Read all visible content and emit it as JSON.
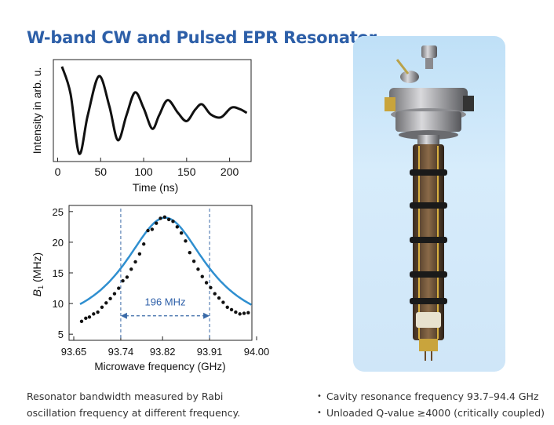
{
  "title": "W-band CW and Pulsed EPR Resonator",
  "caption": "Resonator bandwidth measured by Rabi oscillation frequency at different frequency.",
  "bullets": [
    "Cavity resonance frequency 93.7–94.4 GHz",
    "Unloaded Q-value ≥4000 (critically coupled)"
  ],
  "colors": {
    "title": "#2d5fa8",
    "fit_line": "#2f8fd0",
    "dashed": "#3a6aa8",
    "photo_bg": "#cfe6f8"
  },
  "chart_data": [
    {
      "type": "line",
      "xlabel": "Time (ns)",
      "ylabel": "Intensity in arb. u.",
      "xlim": [
        -5,
        225
      ],
      "xticks": [
        "0",
        "50",
        "100",
        "150",
        "200"
      ],
      "series": [
        {
          "x": [
            5,
            15,
            25,
            35,
            48,
            60,
            70,
            80,
            90,
            100,
            110,
            118,
            128,
            140,
            150,
            160,
            168,
            178,
            190,
            202,
            212,
            220
          ],
          "y": [
            0.92,
            0.35,
            -0.9,
            -0.1,
            0.72,
            0.1,
            -0.62,
            -0.1,
            0.38,
            0.05,
            -0.38,
            -0.1,
            0.22,
            -0.05,
            -0.22,
            0.02,
            0.13,
            -0.08,
            -0.14,
            0.06,
            0.03,
            -0.05
          ]
        }
      ]
    },
    {
      "type": "scatter",
      "xlabel": "Microwave frequency (GHz)",
      "ylabel": "B₁ (MHz)",
      "xlim": [
        93.65,
        94.0
      ],
      "ylim": [
        4,
        26
      ],
      "xticks": [
        "93.65",
        "93.74",
        "93.82",
        "93.91",
        "94.00"
      ],
      "yticks": [
        "5",
        "10",
        "15",
        "20",
        "25"
      ],
      "annotation": "196 MHz",
      "bandwidth_markers": [
        93.74,
        93.91
      ],
      "points_x": [
        93.665,
        93.673,
        93.68,
        93.688,
        93.696,
        93.704,
        93.712,
        93.72,
        93.728,
        93.736,
        93.744,
        93.752,
        93.76,
        93.768,
        93.776,
        93.784,
        93.792,
        93.8,
        93.808,
        93.816,
        93.824,
        93.832,
        93.84,
        93.848,
        93.856,
        93.864,
        93.872,
        93.88,
        93.888,
        93.896,
        93.904,
        93.912,
        93.92,
        93.928,
        93.936,
        93.944,
        93.952,
        93.96,
        93.968,
        93.976,
        93.984
      ],
      "points_y": [
        7.1,
        7.6,
        7.8,
        8.3,
        8.6,
        9.4,
        10.1,
        10.8,
        11.6,
        12.5,
        13.7,
        14.3,
        15.6,
        16.8,
        18.1,
        19.7,
        21.9,
        22.1,
        23.1,
        23.9,
        24.1,
        23.7,
        23.4,
        22.5,
        21.5,
        20.2,
        18.3,
        16.9,
        15.6,
        14.4,
        13.4,
        12.6,
        11.6,
        10.9,
        10.2,
        9.4,
        9.0,
        8.6,
        8.3,
        8.4,
        8.5
      ],
      "fit": {
        "center": 93.825,
        "peak": 24.0,
        "baseline": 4.8,
        "fwhm": 0.196
      }
    }
  ]
}
